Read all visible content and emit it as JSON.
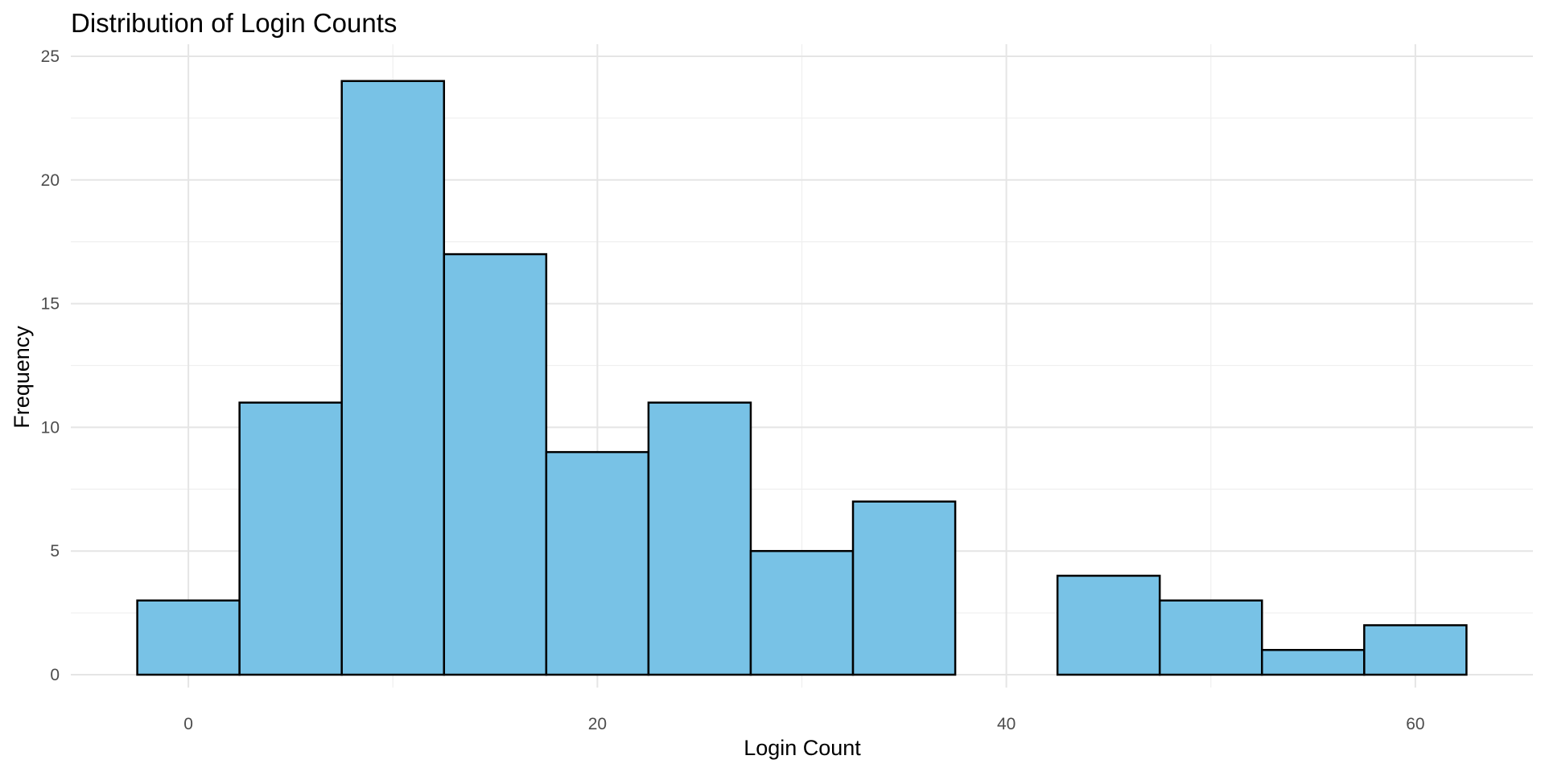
{
  "chart_data": {
    "type": "bar",
    "title": "Distribution of Login Counts",
    "xlabel": "Login Count",
    "ylabel": "Frequency",
    "bin_width": 5,
    "bins": [
      {
        "x0": -2.5,
        "x1": 2.5,
        "count": 3
      },
      {
        "x0": 2.5,
        "x1": 7.5,
        "count": 11
      },
      {
        "x0": 7.5,
        "x1": 12.5,
        "count": 24
      },
      {
        "x0": 12.5,
        "x1": 17.5,
        "count": 17
      },
      {
        "x0": 17.5,
        "x1": 22.5,
        "count": 9
      },
      {
        "x0": 22.5,
        "x1": 27.5,
        "count": 11
      },
      {
        "x0": 27.5,
        "x1": 32.5,
        "count": 5
      },
      {
        "x0": 32.5,
        "x1": 37.5,
        "count": 7
      },
      {
        "x0": 37.5,
        "x1": 42.5,
        "count": 0
      },
      {
        "x0": 42.5,
        "x1": 47.5,
        "count": 4
      },
      {
        "x0": 47.5,
        "x1": 52.5,
        "count": 3
      },
      {
        "x0": 52.5,
        "x1": 57.5,
        "count": 1
      },
      {
        "x0": 57.5,
        "x1": 62.5,
        "count": 2
      }
    ],
    "xlim": [
      -5.75,
      65.75
    ],
    "ylim": [
      0,
      25
    ],
    "x_ticks": [
      0,
      20,
      40,
      60
    ],
    "x_tick_labels": [
      "0",
      "20",
      "40",
      "60"
    ],
    "x_minor_ticks": [
      10,
      30,
      50
    ],
    "y_ticks": [
      0,
      5,
      10,
      15,
      20,
      25
    ],
    "y_tick_labels": [
      "0",
      "5",
      "10",
      "15",
      "20",
      "25"
    ],
    "y_minor_ticks": [
      2.5,
      7.5,
      12.5,
      17.5,
      22.5
    ],
    "grid": true,
    "legend": "none",
    "bar_color": "#78c2e6",
    "bar_outline_color": "#000000"
  }
}
